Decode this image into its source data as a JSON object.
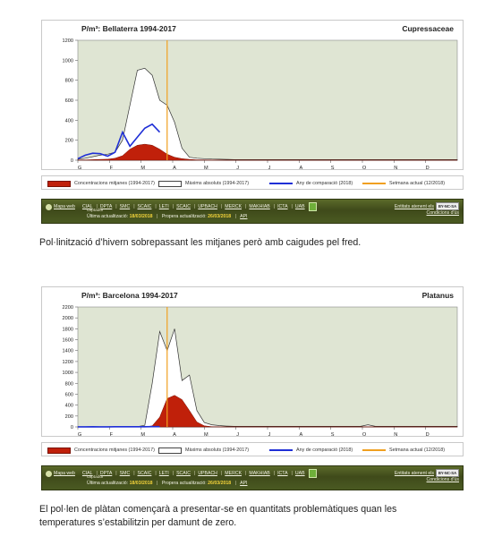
{
  "chart_data": [
    {
      "type": "area",
      "title": "P/m³: Bellaterra 1994-2017",
      "species": "Cupressaceae",
      "x_ticks": [
        "G",
        "F",
        "M",
        "A",
        "M",
        "J",
        "J",
        "A",
        "S",
        "O",
        "N",
        "D"
      ],
      "weeks": 52,
      "y_ticks": [
        0,
        200,
        400,
        600,
        800,
        1000,
        1200
      ],
      "ylim": [
        0,
        1200
      ],
      "current_week": 12,
      "series": {
        "mean": [
          2,
          3,
          5,
          8,
          10,
          20,
          45,
          110,
          150,
          160,
          150,
          110,
          60,
          30,
          15,
          8,
          4,
          3,
          2,
          2,
          1,
          1,
          1,
          1,
          1,
          1,
          1,
          1,
          1,
          1,
          1,
          1,
          1,
          1,
          1,
          1,
          1,
          1,
          1,
          1,
          1,
          1,
          1,
          1,
          1,
          1,
          1,
          1,
          1,
          1,
          1,
          1
        ],
        "max": [
          10,
          20,
          35,
          50,
          60,
          80,
          200,
          550,
          900,
          920,
          850,
          600,
          550,
          380,
          120,
          30,
          20,
          15,
          12,
          10,
          8,
          6,
          6,
          6,
          6,
          6,
          6,
          6,
          6,
          6,
          6,
          6,
          6,
          6,
          6,
          6,
          6,
          6,
          6,
          6,
          6,
          6,
          6,
          6,
          6,
          6,
          6,
          6,
          6,
          6,
          6,
          6
        ],
        "comparison": [
          15,
          50,
          70,
          65,
          40,
          80,
          280,
          140,
          230,
          320,
          360,
          280
        ],
        "comparison_weeks": 12
      },
      "legend": {
        "mean": "Concentracions mitjanes (1994-2017)",
        "max": "Màxims absoluts (1994-2017)",
        "comparison": "Any de comparació (2018)",
        "current": "Setmana actual (12/2018)"
      },
      "colors": {
        "mean": "#c0200a",
        "max_stroke": "#333333",
        "comparison": "#1f2fd6",
        "current": "#f0a020",
        "plot_bg": "#dfe5d3"
      }
    },
    {
      "type": "area",
      "title": "P/m³: Barcelona 1994-2017",
      "species": "Platanus",
      "x_ticks": [
        "G",
        "F",
        "M",
        "A",
        "M",
        "J",
        "J",
        "A",
        "S",
        "O",
        "N",
        "D"
      ],
      "weeks": 52,
      "y_ticks": [
        0,
        200,
        400,
        600,
        800,
        1000,
        1200,
        1400,
        1600,
        1800,
        2000,
        2200
      ],
      "ylim": [
        0,
        2200
      ],
      "current_week": 12,
      "series": {
        "mean": [
          0,
          0,
          0,
          0,
          0,
          0,
          0,
          0,
          0,
          0,
          20,
          180,
          520,
          580,
          500,
          300,
          90,
          20,
          5,
          2,
          1,
          1,
          1,
          1,
          1,
          1,
          1,
          1,
          1,
          1,
          1,
          1,
          1,
          1,
          1,
          1,
          1,
          1,
          1,
          1,
          1,
          1,
          1,
          1,
          1,
          1,
          1,
          1,
          1,
          1,
          1,
          1
        ],
        "max": [
          2,
          2,
          2,
          2,
          2,
          2,
          2,
          2,
          5,
          30,
          800,
          1750,
          1400,
          1800,
          850,
          950,
          300,
          80,
          40,
          25,
          15,
          10,
          10,
          10,
          10,
          10,
          10,
          10,
          10,
          10,
          10,
          10,
          10,
          10,
          10,
          10,
          10,
          10,
          10,
          40,
          10,
          10,
          10,
          10,
          10,
          10,
          10,
          10,
          10,
          10,
          10,
          10
        ],
        "comparison": [
          2,
          2,
          3,
          2,
          2,
          3,
          4,
          3,
          3,
          4,
          5,
          5
        ],
        "comparison_weeks": 12
      },
      "legend": {
        "mean": "Concentracions mitjanes (1994-2017)",
        "max": "Màxims absoluts (1994-2017)",
        "comparison": "Any de comparació (2018)",
        "current": "Setmana actual (12/2018)"
      },
      "colors": {
        "mean": "#c0200a",
        "max_stroke": "#333333",
        "comparison": "#1f2fd6",
        "current": "#f0a020",
        "plot_bg": "#dfe5d3"
      }
    }
  ],
  "footer": {
    "map_link": "Mapa web",
    "links": [
      "CIAL",
      "DPTA",
      "SMC",
      "SCAIC",
      "LETI",
      "SCAIC",
      "UPBACH",
      "MERCK",
      "MAKHIAB",
      "ICTA",
      "UAB"
    ],
    "captador": "captador",
    "last_update_label": "Última actualització:",
    "last_update_value": "18/03/2018",
    "next_update_label": "Propera actualització:",
    "next_update_value": "26/03/2018",
    "api": "API",
    "entities_text": "Entitats atenent els",
    "cc_badge": "BY-NC-SA",
    "conditions": "Condicions d'ús"
  },
  "captions": [
    "Pol·linització d’hivern sobrepassant les mitjanes però amb caigudes pel fred.",
    "El pol·len de plàtan començarà a presentar-se en quantitats problemàtiques quan les temperatures s’estabilitzin per damunt de zero."
  ]
}
